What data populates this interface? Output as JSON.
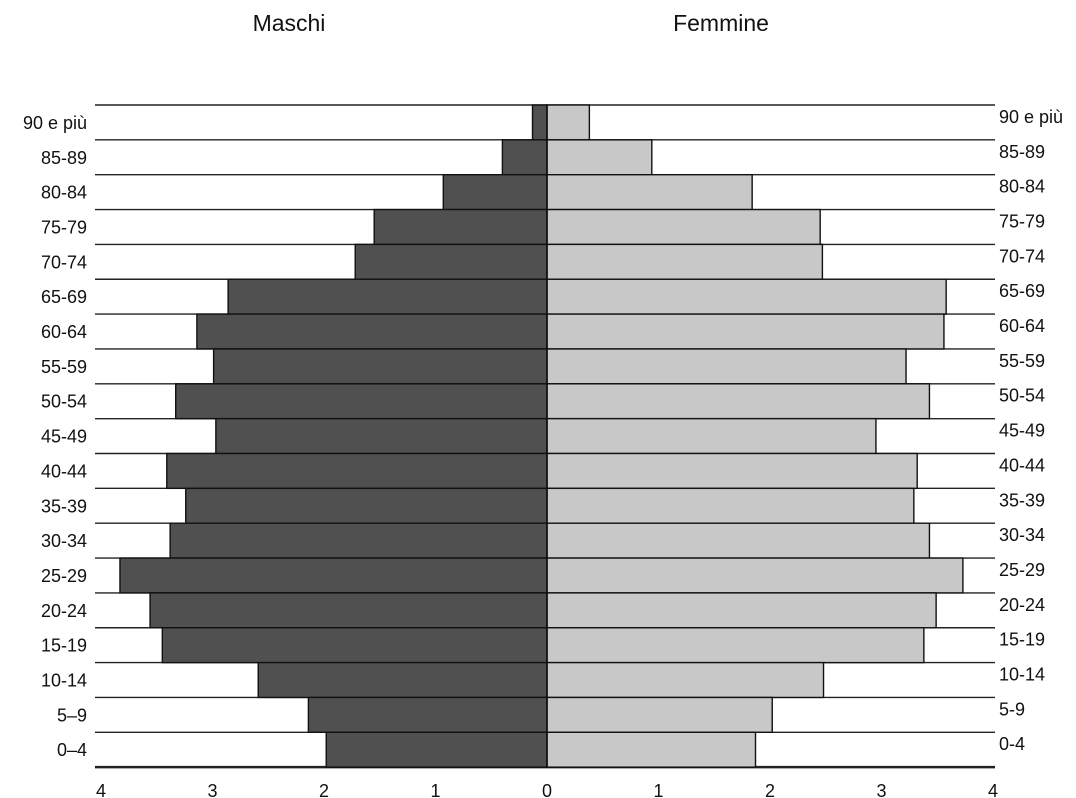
{
  "chart_data": {
    "type": "bar",
    "orientation": "horizontal",
    "layout": "population-pyramid",
    "left_header": "Maschi",
    "right_header": "Femmine",
    "categories_left": [
      "90 e più",
      "85-89",
      "80-84",
      "75-79",
      "70-74",
      "65-69",
      "60-64",
      "55-59",
      "50-54",
      "45-49",
      "40-44",
      "35-39",
      "30-34",
      "25-29",
      "20-24",
      "15-19",
      "10-14",
      "5–9",
      "0–4"
    ],
    "categories_right": [
      "90 e più",
      "85-89",
      "80-84",
      "75-79",
      "70-74",
      "65-69",
      "60-64",
      "55-59",
      "50-54",
      "45-49",
      "40-44",
      "35-39",
      "30-34",
      "25-29",
      "20-24",
      "15-19",
      "10-14",
      "5-9",
      "0-4"
    ],
    "series": [
      {
        "name": "Maschi",
        "side": "left",
        "color": "#505050",
        "values": [
          0.13,
          0.4,
          0.93,
          1.55,
          1.72,
          2.86,
          3.14,
          2.99,
          3.33,
          2.97,
          3.41,
          3.24,
          3.38,
          3.83,
          3.56,
          3.45,
          2.59,
          2.14,
          1.98
        ]
      },
      {
        "name": "Femmine",
        "side": "right",
        "color": "#c8c8c8",
        "values": [
          0.38,
          0.94,
          1.84,
          2.45,
          2.47,
          3.58,
          3.56,
          3.22,
          3.43,
          2.95,
          3.32,
          3.29,
          3.43,
          3.73,
          3.49,
          3.38,
          2.48,
          2.02,
          1.87
        ]
      }
    ],
    "xticks_left": [
      4,
      3,
      2,
      1,
      0
    ],
    "xticks_right": [
      1,
      2,
      3,
      4
    ],
    "xlim": [
      0,
      4
    ],
    "grid": true
  }
}
